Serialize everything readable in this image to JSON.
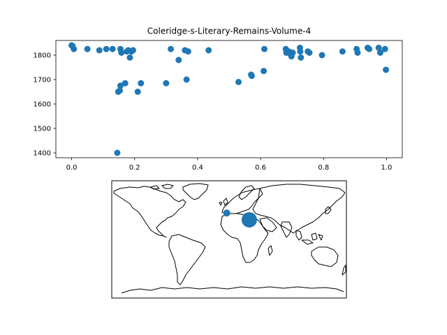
{
  "chart_data": [
    {
      "type": "scatter",
      "title": "Coleridge-s-Literary-Remains-Volume-4",
      "xlabel": "",
      "ylabel": "",
      "xlim": [
        -0.05,
        1.05
      ],
      "ylim": [
        1380,
        1860
      ],
      "xticks": [
        "0.0",
        "0.2",
        "0.4",
        "0.6",
        "0.8",
        "1.0"
      ],
      "xtick_values": [
        0.0,
        0.2,
        0.4,
        0.6,
        0.8,
        1.0
      ],
      "yticks": [
        "1400",
        "1500",
        "1600",
        "1700",
        "1800"
      ],
      "ytick_values": [
        1400,
        1500,
        1600,
        1700,
        1800
      ],
      "grid": false,
      "color": "#1f77b4",
      "points": [
        {
          "x": 0.0,
          "y": 1840
        },
        {
          "x": 0.003,
          "y": 1837
        },
        {
          "x": 0.007,
          "y": 1825
        },
        {
          "x": 0.05,
          "y": 1825
        },
        {
          "x": 0.088,
          "y": 1820
        },
        {
          "x": 0.11,
          "y": 1825
        },
        {
          "x": 0.13,
          "y": 1825
        },
        {
          "x": 0.145,
          "y": 1400
        },
        {
          "x": 0.148,
          "y": 1650
        },
        {
          "x": 0.153,
          "y": 1655
        },
        {
          "x": 0.155,
          "y": 1675
        },
        {
          "x": 0.155,
          "y": 1825
        },
        {
          "x": 0.158,
          "y": 1810
        },
        {
          "x": 0.17,
          "y": 1685
        },
        {
          "x": 0.175,
          "y": 1815
        },
        {
          "x": 0.18,
          "y": 1820
        },
        {
          "x": 0.185,
          "y": 1790
        },
        {
          "x": 0.19,
          "y": 1815
        },
        {
          "x": 0.195,
          "y": 1820
        },
        {
          "x": 0.21,
          "y": 1650
        },
        {
          "x": 0.22,
          "y": 1685
        },
        {
          "x": 0.3,
          "y": 1685
        },
        {
          "x": 0.315,
          "y": 1825
        },
        {
          "x": 0.34,
          "y": 1780
        },
        {
          "x": 0.36,
          "y": 1820
        },
        {
          "x": 0.365,
          "y": 1700
        },
        {
          "x": 0.37,
          "y": 1815
        },
        {
          "x": 0.435,
          "y": 1820
        },
        {
          "x": 0.53,
          "y": 1690
        },
        {
          "x": 0.57,
          "y": 1720
        },
        {
          "x": 0.572,
          "y": 1715
        },
        {
          "x": 0.61,
          "y": 1735
        },
        {
          "x": 0.612,
          "y": 1825
        },
        {
          "x": 0.68,
          "y": 1825
        },
        {
          "x": 0.682,
          "y": 1810
        },
        {
          "x": 0.69,
          "y": 1815
        },
        {
          "x": 0.695,
          "y": 1805
        },
        {
          "x": 0.698,
          "y": 1795
        },
        {
          "x": 0.702,
          "y": 1810
        },
        {
          "x": 0.725,
          "y": 1830
        },
        {
          "x": 0.726,
          "y": 1815
        },
        {
          "x": 0.728,
          "y": 1790
        },
        {
          "x": 0.75,
          "y": 1815
        },
        {
          "x": 0.755,
          "y": 1810
        },
        {
          "x": 0.795,
          "y": 1800
        },
        {
          "x": 0.86,
          "y": 1815
        },
        {
          "x": 0.905,
          "y": 1825
        },
        {
          "x": 0.908,
          "y": 1810
        },
        {
          "x": 0.94,
          "y": 1830
        },
        {
          "x": 0.945,
          "y": 1825
        },
        {
          "x": 0.975,
          "y": 1830
        },
        {
          "x": 0.98,
          "y": 1810
        },
        {
          "x": 0.995,
          "y": 1825
        },
        {
          "x": 0.998,
          "y": 1740
        }
      ]
    },
    {
      "type": "map",
      "projection": "plate-carree",
      "coastlines": true,
      "color": "#1f77b4",
      "markers": [
        {
          "lon": -3.5,
          "lat": 40.5,
          "size": "small"
        },
        {
          "lon": 31.0,
          "lat": 30.0,
          "size": "large"
        }
      ]
    }
  ]
}
